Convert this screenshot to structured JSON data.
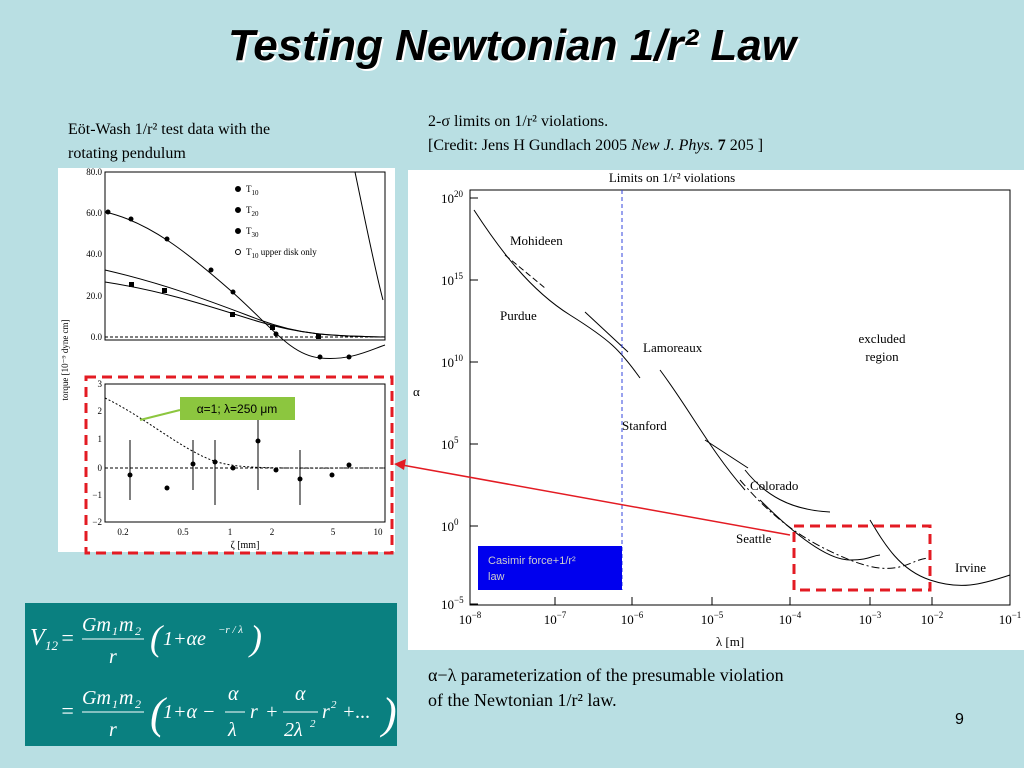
{
  "title": "Testing Newtonian 1/r² Law",
  "left_caption": [
    "Eöt-Wash 1/r² test data with the",
    "rotating pendulum"
  ],
  "right_caption": {
    "line1": "2-σ limits on 1/r² violations.",
    "line2_prefix": "[Credit: Jens H Gundlach 2005 ",
    "journal": "New J. Phys.",
    "volume": "7",
    "line2_suffix": " 205 ]"
  },
  "left_plot": {
    "top_yticks": [
      "80.0",
      "60.0",
      "40.0",
      "20.0",
      "0.0"
    ],
    "bottom_yticks": [
      "3",
      "2",
      "1",
      "0",
      "−1",
      "−2"
    ],
    "xticks": [
      "0.2",
      "0.5",
      "1",
      "2",
      "5",
      "10"
    ],
    "xlabel": "ζ [mm]",
    "ylabel": "torque [10⁻⁹ dyne cm]",
    "legend": [
      {
        "sym": "T",
        "sub": "10",
        "rest": ""
      },
      {
        "sym": "T",
        "sub": "20",
        "rest": ""
      },
      {
        "sym": "T",
        "sub": "30",
        "rest": ""
      },
      {
        "sym": "T",
        "sub": "10",
        "rest": " upper disk only"
      }
    ],
    "callout": "α=1; λ=250 μm"
  },
  "right_plot": {
    "title": "Limits on 1/r² violations",
    "ylabel": "α",
    "xlabel": "λ [m]",
    "yticks": [
      {
        "base": "10",
        "exp": "20"
      },
      {
        "base": "10",
        "exp": "15"
      },
      {
        "base": "10",
        "exp": "10"
      },
      {
        "base": "10",
        "exp": "5"
      },
      {
        "base": "10",
        "exp": "0"
      },
      {
        "base": "10",
        "exp": "−5"
      }
    ],
    "xticks": [
      {
        "base": "10",
        "exp": "−8"
      },
      {
        "base": "10",
        "exp": "−7"
      },
      {
        "base": "10",
        "exp": "−6"
      },
      {
        "base": "10",
        "exp": "−5"
      },
      {
        "base": "10",
        "exp": "−4"
      },
      {
        "base": "10",
        "exp": "−3"
      },
      {
        "base": "10",
        "exp": "−2"
      },
      {
        "base": "10",
        "exp": "−1"
      }
    ],
    "labels": [
      "Mohideen",
      "Purdue",
      "Lamoreaux",
      "Stanford",
      "Colorado",
      "Seattle",
      "Irvine"
    ],
    "excluded": [
      "excluded",
      "region"
    ],
    "casimir": [
      "Casimir force+1/r²",
      "law"
    ]
  },
  "equation": {
    "V": "V",
    "V_sub": "12",
    "eq": "=",
    "num": "Gm",
    "num_s1": "1",
    "num_m": "m",
    "num_s2": "2",
    "den": "r",
    "term1": "1+αe",
    "term1_exp": "−r / λ",
    "term2a": "1+α −",
    "alpha": "α",
    "lambda": "λ",
    "r": "r",
    "plus": "+",
    "two_lambda": "2λ",
    "sq": "2",
    "r2": "r",
    "r2_exp": "2",
    "tail": "+..."
  },
  "description": [
    "α−λ parameterization of the presumable violation",
    "of the Newtonian 1/r² law."
  ],
  "page_number": "9"
}
